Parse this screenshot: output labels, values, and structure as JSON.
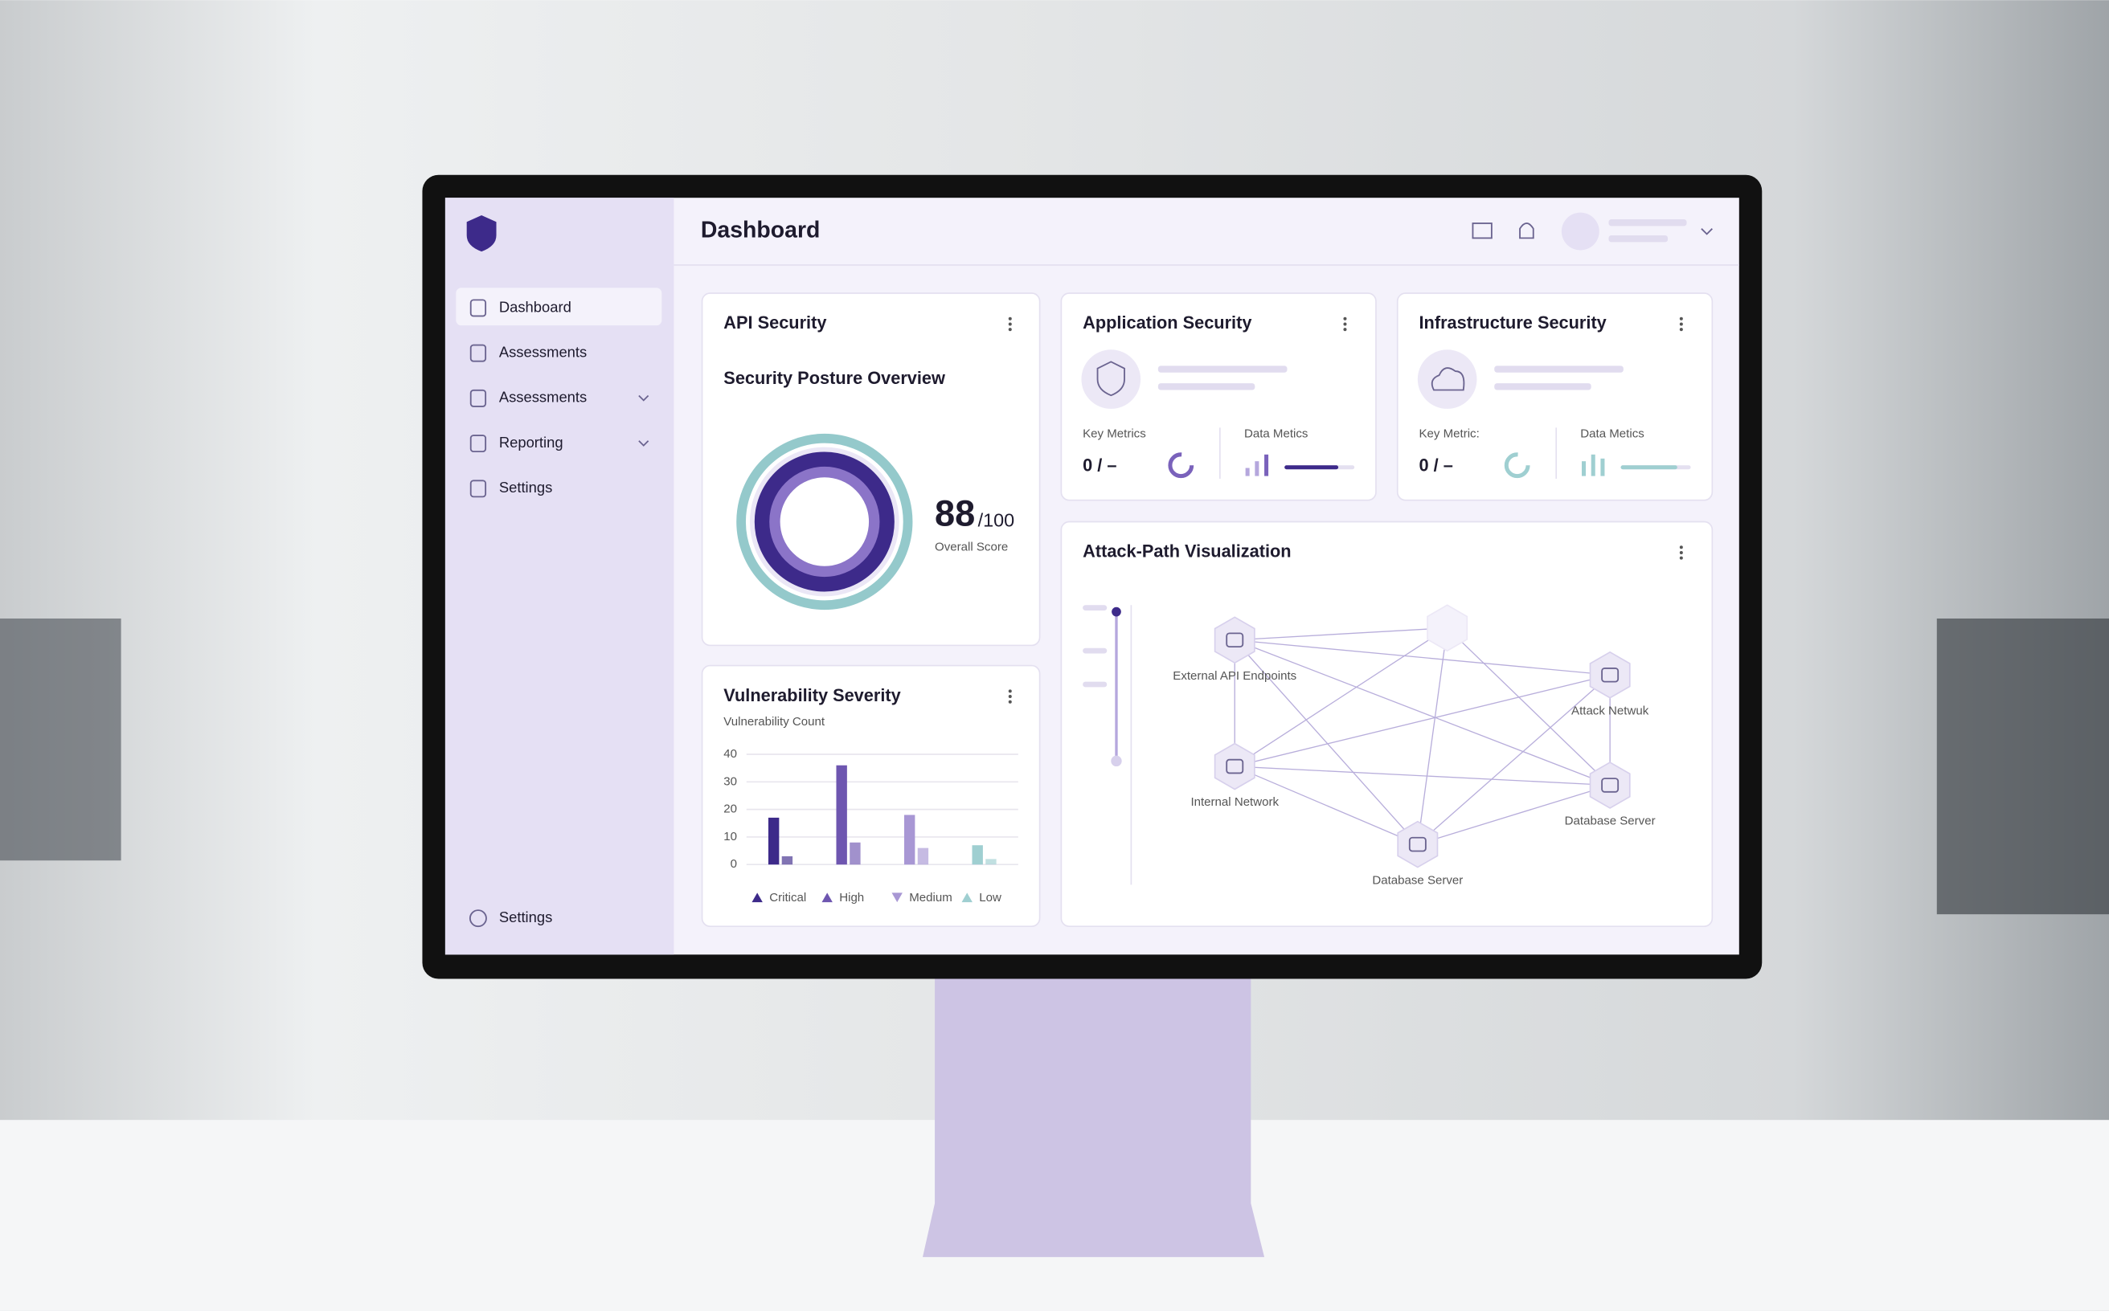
{
  "sidebar": {
    "items": [
      "Dashboard",
      "Assessments",
      "Assessments",
      "Reporting",
      "Settings"
    ],
    "footer": "Settings"
  },
  "header": {
    "title": "Dashboard"
  },
  "api_security": {
    "title": "API Security",
    "subtitle": "Security Posture Overview",
    "score": 88,
    "score_suffix": "/100",
    "score_label": "Overall Score"
  },
  "application_security": {
    "title": "Application Security",
    "key_label": "Key Metrics",
    "key_value": "0 / –",
    "data_label": "Data Metics"
  },
  "infrastructure_security": {
    "title": "Infrastructure Security",
    "key_label": "Key Metric:",
    "key_value": "0 / –",
    "data_label": "Data Metics"
  },
  "vulnerability_chart": {
    "type": "bar",
    "title": "Vulnerability Severity",
    "subtitle": "Vulnerability Count",
    "ylim": [
      0,
      40
    ],
    "yticks": [
      0,
      10,
      20,
      30,
      40
    ],
    "grid": true,
    "series": [
      {
        "name": "Critical",
        "color": "#3d2a8a",
        "values": [
          17,
          3
        ]
      },
      {
        "name": "High",
        "color": "#6e56b0",
        "values": [
          36,
          8
        ]
      },
      {
        "name": "Medium",
        "color": "#a897d4",
        "values": [
          18,
          6
        ]
      },
      {
        "name": "Low",
        "color": "#9fcfd1",
        "values": [
          7,
          2
        ]
      }
    ]
  },
  "attack_path": {
    "title": "Attack-Path Visualization",
    "nodes": [
      {
        "label": "External API Endpoints"
      },
      {
        "label": "Attack Netwuk"
      },
      {
        "label": "Internal Network"
      },
      {
        "label": "Database Server"
      },
      {
        "label": "Database Server"
      }
    ]
  }
}
